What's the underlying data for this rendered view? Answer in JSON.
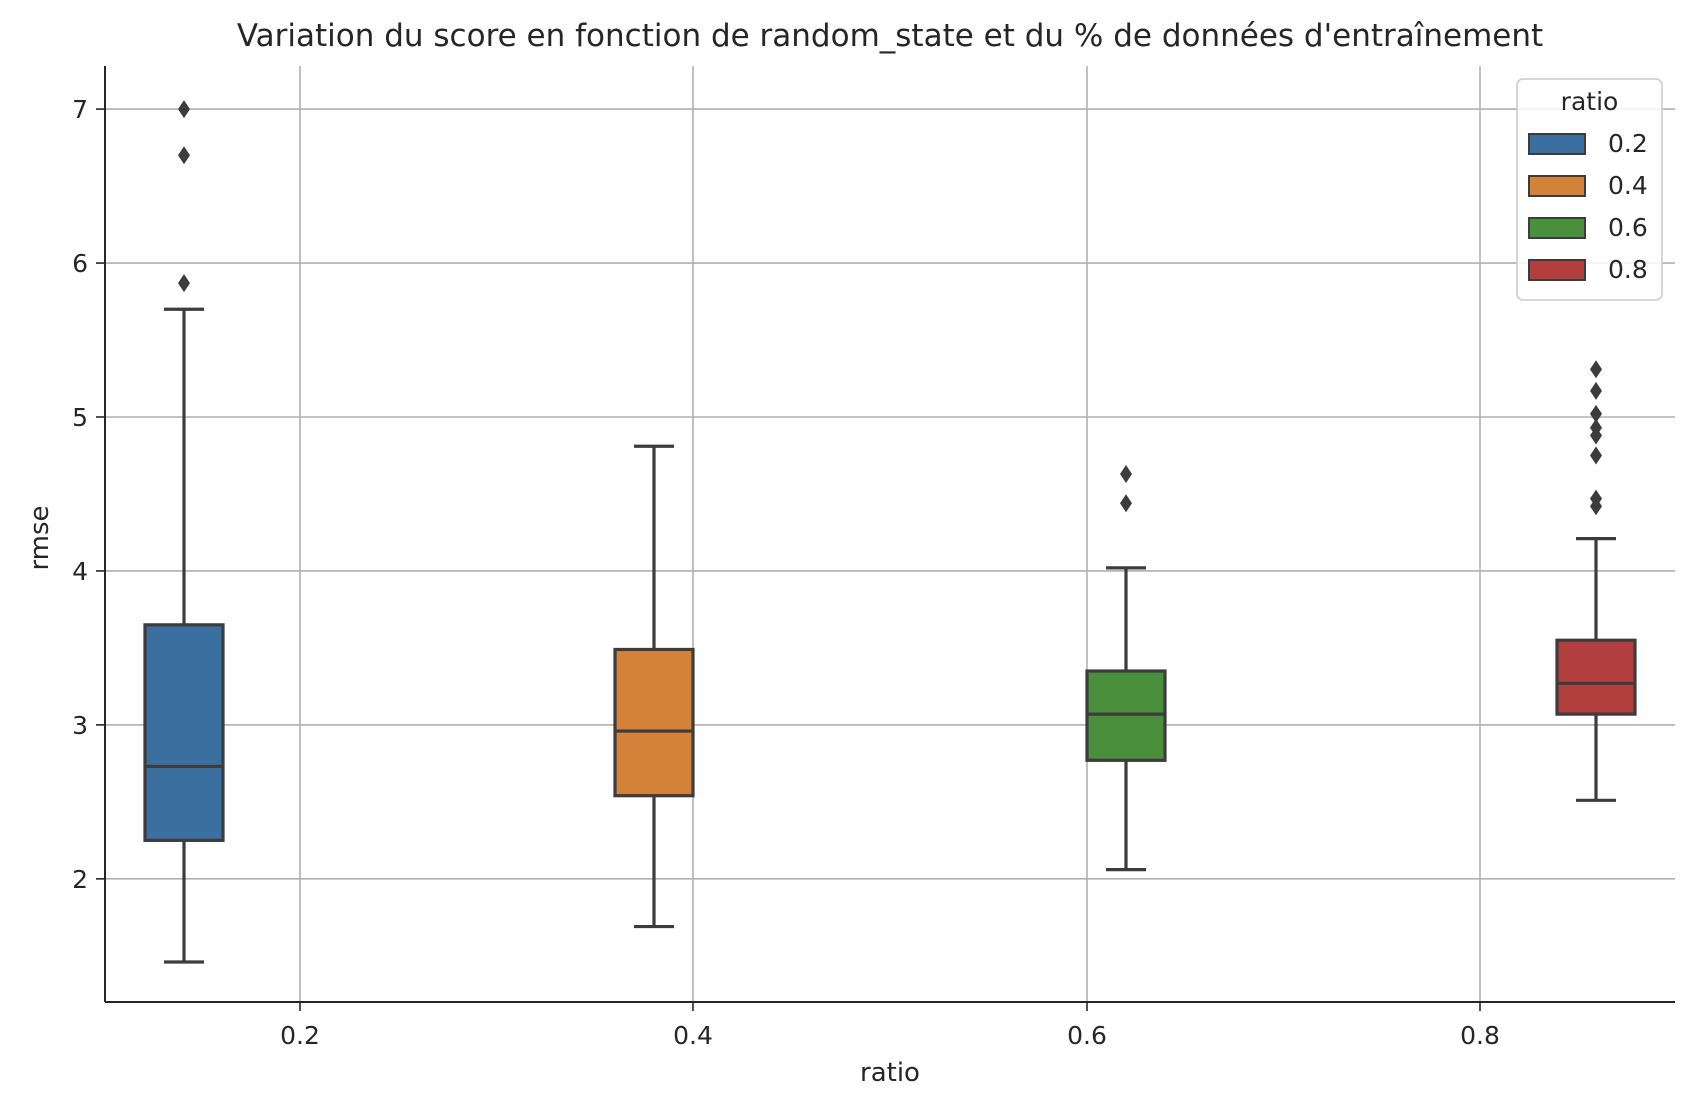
{
  "chart_data": {
    "type": "boxplot",
    "title": "Variation du score en fonction de random_state et du % de données d'entraînement",
    "xlabel": "ratio",
    "ylabel": "rmse",
    "x_ticks": [
      "0.2",
      "0.4",
      "0.6",
      "0.8"
    ],
    "y_ticks": [
      2,
      3,
      4,
      5,
      6,
      7
    ],
    "ylim": [
      1.2,
      7.28
    ],
    "grid": true,
    "legend": {
      "title": "ratio",
      "placement": "upper right",
      "entries": [
        "0.2",
        "0.4",
        "0.6",
        "0.8"
      ]
    },
    "series": [
      {
        "name": "0.2",
        "color": "#3a6f9f",
        "whisker_low": 1.46,
        "q1": 2.25,
        "median": 2.73,
        "q3": 3.65,
        "whisker_high": 5.7,
        "outliers": [
          5.87,
          6.7,
          7.0
        ]
      },
      {
        "name": "0.4",
        "color": "#d4823a",
        "whisker_low": 1.69,
        "q1": 2.54,
        "median": 2.96,
        "q3": 3.49,
        "whisker_high": 4.81,
        "outliers": []
      },
      {
        "name": "0.6",
        "color": "#4a8f3c",
        "whisker_low": 2.06,
        "q1": 2.77,
        "median": 3.07,
        "q3": 3.35,
        "whisker_high": 4.02,
        "outliers": [
          4.44,
          4.63
        ]
      },
      {
        "name": "0.8",
        "color": "#b33e3e",
        "whisker_low": 2.51,
        "q1": 3.07,
        "median": 3.27,
        "q3": 3.55,
        "whisker_high": 4.21,
        "outliers": [
          4.42,
          4.47,
          4.75,
          4.88,
          4.93,
          5.02,
          5.17,
          5.31
        ]
      }
    ]
  }
}
